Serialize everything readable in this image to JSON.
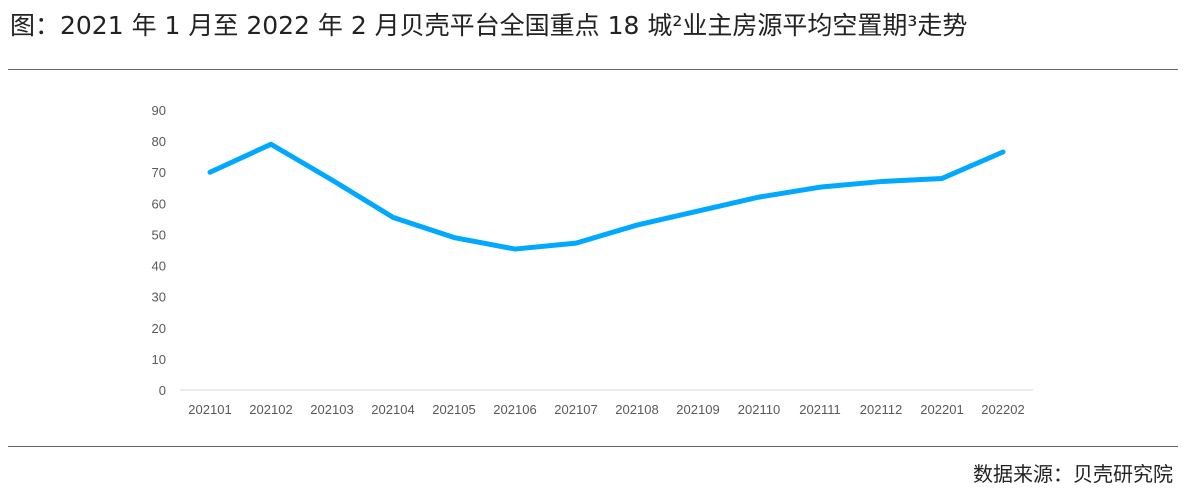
{
  "title": "图：2021 年 1 月至 2022 年 2 月贝壳平台全国重点 18 城²业主房源平均空置期³走势",
  "source": "数据来源：贝壳研究院",
  "chart_data": {
    "type": "line",
    "title": "",
    "xlabel": "",
    "ylabel": "",
    "ylim": [
      0,
      90
    ],
    "yticks": [
      0,
      10,
      20,
      30,
      40,
      50,
      60,
      70,
      80,
      90
    ],
    "grid": false,
    "categories": [
      "202101",
      "202102",
      "202103",
      "202104",
      "202105",
      "202106",
      "202107",
      "202108",
      "202109",
      "202110",
      "202111",
      "202112",
      "202201",
      "202202"
    ],
    "series": [
      {
        "values": [
          70,
          79,
          67.5,
          55.5,
          49,
          45.3,
          47.2,
          53,
          57.5,
          62,
          65.2,
          67,
          68,
          76.5
        ],
        "color": "#00A8FF"
      }
    ]
  }
}
